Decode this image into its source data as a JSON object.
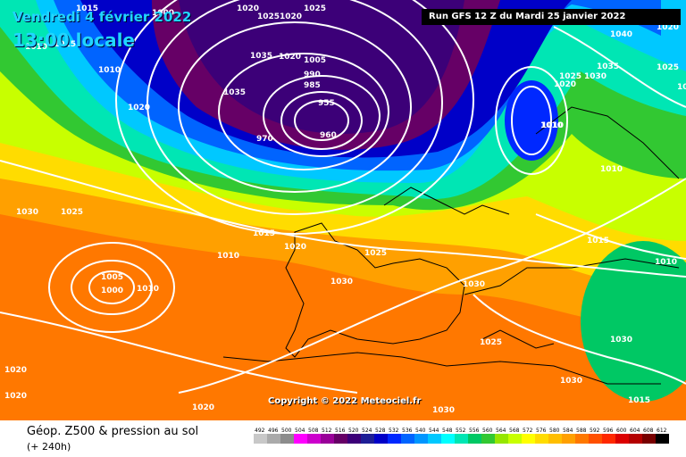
{
  "header": {
    "date": "Vendredi 4 février 2022",
    "time": "13:00 locale",
    "run": "Run GFS 12 Z du Mardi 25 janvier 2022"
  },
  "copyright": "Copyright © 2022 Meteociel.fr",
  "footer": {
    "title": "Géop. Z500 & pression au sol",
    "subtitle": "(+ 240h)"
  },
  "legend": {
    "values": [
      "492",
      "496",
      "500",
      "504",
      "508",
      "512",
      "516",
      "520",
      "524",
      "528",
      "532",
      "536",
      "540",
      "544",
      "548",
      "552",
      "556",
      "560",
      "564",
      "568",
      "572",
      "576",
      "580",
      "584",
      "588",
      "592",
      "596",
      "600",
      "604",
      "608",
      "612"
    ],
    "colors": [
      "#c8c8c8",
      "#aaaaaa",
      "#8c8c8c",
      "#ff00ff",
      "#cc00cc",
      "#990099",
      "#660066",
      "#3c0078",
      "#1e1e96",
      "#0000c8",
      "#0028ff",
      "#0064ff",
      "#0096ff",
      "#00c8ff",
      "#00ffff",
      "#00e6b4",
      "#00c864",
      "#32c832",
      "#96e600",
      "#c8ff00",
      "#ffff00",
      "#ffdc00",
      "#ffbe00",
      "#ffa000",
      "#ff7800",
      "#ff5000",
      "#ff2800",
      "#dc0000",
      "#b40000",
      "#780000",
      "#000000"
    ]
  },
  "pressure_labels": [
    "1015",
    "1000",
    "1020",
    "1025",
    "1020",
    "1025",
    "1035",
    "1020",
    "1010",
    "1010",
    "1015",
    "1020",
    "1035",
    "1005",
    "990",
    "985",
    "960",
    "955",
    "970",
    "1010",
    "1020",
    "1025",
    "1020",
    "1030",
    "1025",
    "1030",
    "1040",
    "1035",
    "1010",
    "1015",
    "1010",
    "1025",
    "1020",
    "1015",
    "1010",
    "1030",
    "1025",
    "1030",
    "1020",
    "1010",
    "1005",
    "1000",
    "1010",
    "1030",
    "1030",
    "1025",
    "1030",
    "1020",
    "1020",
    "1030",
    "1015"
  ],
  "isobar_centers": [
    "low",
    "high",
    "high",
    "low"
  ]
}
